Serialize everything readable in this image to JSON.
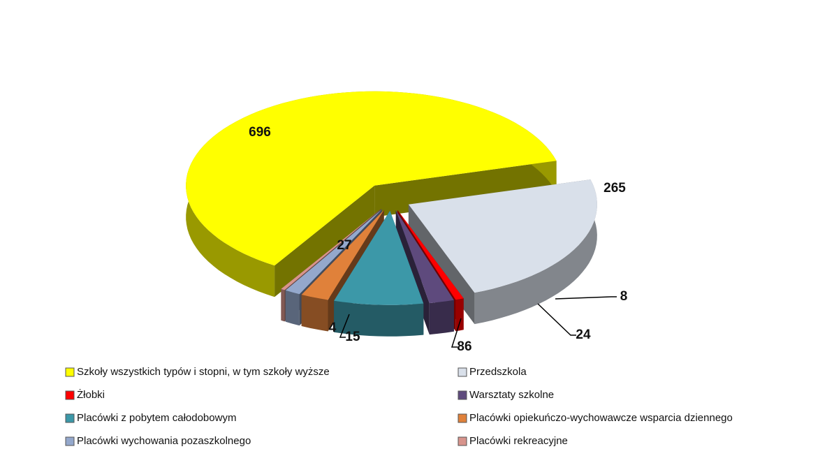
{
  "chart_data": {
    "type": "pie",
    "categories": [
      "Szkoły wszystkich typów i stopni, w tym szkoły wyższe",
      "Przedszkola",
      "Żłobki",
      "Warsztaty szkolne",
      "Placówki z pobytem całodobowym",
      "Placówki opiekuńczo-wychowawcze wsparcia dziennego",
      "Placówki wychowania pozaszkolnego",
      "Placówki rekreacyjne"
    ],
    "values": [
      696,
      265,
      8,
      24,
      86,
      27,
      15,
      4
    ],
    "colors": [
      "#ffff00",
      "#d9e0ea",
      "#ff0000",
      "#5e4a7d",
      "#3c98a8",
      "#e0813a",
      "#94a8cc",
      "#d8948c"
    ]
  }
}
